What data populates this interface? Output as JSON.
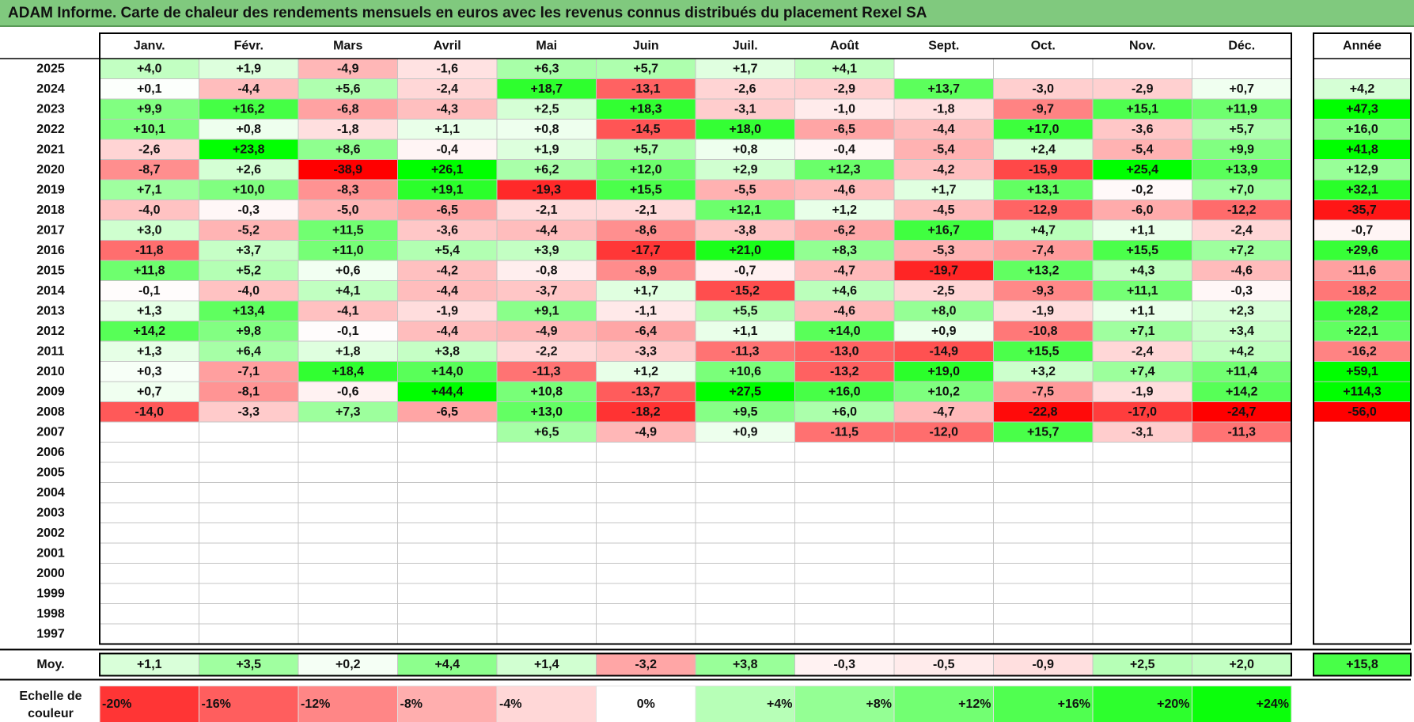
{
  "title": "ADAM Informe. Carte de chaleur des rendements mensuels en euros avec les revenus connus distribués du placement Rexel SA",
  "chart_data": {
    "type": "heatmap",
    "months": [
      "Janv.",
      "Févr.",
      "Mars",
      "Avril",
      "Mai",
      "Juin",
      "Juil.",
      "Août",
      "Sept.",
      "Oct.",
      "Nov.",
      "Déc."
    ],
    "annual_header": "Année",
    "average_label": "Moy.",
    "rows": [
      {
        "year": "2025",
        "values": [
          "+4,0",
          "+1,9",
          "-4,9",
          "-1,6",
          "+6,3",
          "+5,7",
          "+1,7",
          "+4,1",
          null,
          null,
          null,
          null
        ],
        "annual": null
      },
      {
        "year": "2024",
        "values": [
          "+0,1",
          "-4,4",
          "+5,6",
          "-2,4",
          "+18,7",
          "-13,1",
          "-2,6",
          "-2,9",
          "+13,7",
          "-3,0",
          "-2,9",
          "+0,7"
        ],
        "annual": "+4,2"
      },
      {
        "year": "2023",
        "values": [
          "+9,9",
          "+16,2",
          "-6,8",
          "-4,3",
          "+2,5",
          "+18,3",
          "-3,1",
          "-1,0",
          "-1,8",
          "-9,7",
          "+15,1",
          "+11,9"
        ],
        "annual": "+47,3"
      },
      {
        "year": "2022",
        "values": [
          "+10,1",
          "+0,8",
          "-1,8",
          "+1,1",
          "+0,8",
          "-14,5",
          "+18,0",
          "-6,5",
          "-4,4",
          "+17,0",
          "-3,6",
          "+5,7"
        ],
        "annual": "+16,0"
      },
      {
        "year": "2021",
        "values": [
          "-2,6",
          "+23,8",
          "+8,6",
          "-0,4",
          "+1,9",
          "+5,7",
          "+0,8",
          "-0,4",
          "-5,4",
          "+2,4",
          "-5,4",
          "+9,9"
        ],
        "annual": "+41,8"
      },
      {
        "year": "2020",
        "values": [
          "-8,7",
          "+2,6",
          "-38,9",
          "+26,1",
          "+6,2",
          "+12,0",
          "+2,9",
          "+12,3",
          "-4,2",
          "-15,9",
          "+25,4",
          "+13,9"
        ],
        "annual": "+12,9"
      },
      {
        "year": "2019",
        "values": [
          "+7,1",
          "+10,0",
          "-8,3",
          "+19,1",
          "-19,3",
          "+15,5",
          "-5,5",
          "-4,6",
          "+1,7",
          "+13,1",
          "-0,2",
          "+7,0"
        ],
        "annual": "+32,1"
      },
      {
        "year": "2018",
        "values": [
          "-4,0",
          "-0,3",
          "-5,0",
          "-6,5",
          "-2,1",
          "-2,1",
          "+12,1",
          "+1,2",
          "-4,5",
          "-12,9",
          "-6,0",
          "-12,2"
        ],
        "annual": "-35,7"
      },
      {
        "year": "2017",
        "values": [
          "+3,0",
          "-5,2",
          "+11,5",
          "-3,6",
          "-4,4",
          "-8,6",
          "-3,8",
          "-6,2",
          "+16,7",
          "+4,7",
          "+1,1",
          "-2,4"
        ],
        "annual": "-0,7"
      },
      {
        "year": "2016",
        "values": [
          "-11,8",
          "+3,7",
          "+11,0",
          "+5,4",
          "+3,9",
          "-17,7",
          "+21,0",
          "+8,3",
          "-5,3",
          "-7,4",
          "+15,5",
          "+7,2"
        ],
        "annual": "+29,6"
      },
      {
        "year": "2015",
        "values": [
          "+11,8",
          "+5,2",
          "+0,6",
          "-4,2",
          "-0,8",
          "-8,9",
          "-0,7",
          "-4,7",
          "-19,7",
          "+13,2",
          "+4,3",
          "-4,6"
        ],
        "annual": "-11,6"
      },
      {
        "year": "2014",
        "values": [
          "-0,1",
          "-4,0",
          "+4,1",
          "-4,4",
          "-3,7",
          "+1,7",
          "-15,2",
          "+4,6",
          "-2,5",
          "-9,3",
          "+11,1",
          "-0,3"
        ],
        "annual": "-18,2"
      },
      {
        "year": "2013",
        "values": [
          "+1,3",
          "+13,4",
          "-4,1",
          "-1,9",
          "+9,1",
          "-1,1",
          "+5,5",
          "-4,6",
          "+8,0",
          "-1,9",
          "+1,1",
          "+2,3"
        ],
        "annual": "+28,2"
      },
      {
        "year": "2012",
        "values": [
          "+14,2",
          "+9,8",
          "-0,1",
          "-4,4",
          "-4,9",
          "-6,4",
          "+1,1",
          "+14,0",
          "+0,9",
          "-10,8",
          "+7,1",
          "+3,4"
        ],
        "annual": "+22,1"
      },
      {
        "year": "2011",
        "values": [
          "+1,3",
          "+6,4",
          "+1,8",
          "+3,8",
          "-2,2",
          "-3,3",
          "-11,3",
          "-13,0",
          "-14,9",
          "+15,5",
          "-2,4",
          "+4,2"
        ],
        "annual": "-16,2"
      },
      {
        "year": "2010",
        "values": [
          "+0,3",
          "-7,1",
          "+18,4",
          "+14,0",
          "-11,3",
          "+1,2",
          "+10,6",
          "-13,2",
          "+19,0",
          "+3,2",
          "+7,4",
          "+11,4"
        ],
        "annual": "+59,1"
      },
      {
        "year": "2009",
        "values": [
          "+0,7",
          "-8,1",
          "-0,6",
          "+44,4",
          "+10,8",
          "-13,7",
          "+27,5",
          "+16,0",
          "+10,2",
          "-7,5",
          "-1,9",
          "+14,2"
        ],
        "annual": "+114,3"
      },
      {
        "year": "2008",
        "values": [
          "-14,0",
          "-3,3",
          "+7,3",
          "-6,5",
          "+13,0",
          "-18,2",
          "+9,5",
          "+6,0",
          "-4,7",
          "-22,8",
          "-17,0",
          "-24,7"
        ],
        "annual": "-56,0"
      },
      {
        "year": "2007",
        "values": [
          null,
          null,
          null,
          null,
          "+6,5",
          "-4,9",
          "+0,9",
          "-11,5",
          "-12,0",
          "+15,7",
          "-3,1",
          "-11,3"
        ],
        "annual": null
      },
      {
        "year": "2006",
        "values": [
          null,
          null,
          null,
          null,
          null,
          null,
          null,
          null,
          null,
          null,
          null,
          null
        ],
        "annual": null
      },
      {
        "year": "2005",
        "values": [
          null,
          null,
          null,
          null,
          null,
          null,
          null,
          null,
          null,
          null,
          null,
          null
        ],
        "annual": null
      },
      {
        "year": "2004",
        "values": [
          null,
          null,
          null,
          null,
          null,
          null,
          null,
          null,
          null,
          null,
          null,
          null
        ],
        "annual": null
      },
      {
        "year": "2003",
        "values": [
          null,
          null,
          null,
          null,
          null,
          null,
          null,
          null,
          null,
          null,
          null,
          null
        ],
        "annual": null
      },
      {
        "year": "2002",
        "values": [
          null,
          null,
          null,
          null,
          null,
          null,
          null,
          null,
          null,
          null,
          null,
          null
        ],
        "annual": null
      },
      {
        "year": "2001",
        "values": [
          null,
          null,
          null,
          null,
          null,
          null,
          null,
          null,
          null,
          null,
          null,
          null
        ],
        "annual": null
      },
      {
        "year": "2000",
        "values": [
          null,
          null,
          null,
          null,
          null,
          null,
          null,
          null,
          null,
          null,
          null,
          null
        ],
        "annual": null
      },
      {
        "year": "1999",
        "values": [
          null,
          null,
          null,
          null,
          null,
          null,
          null,
          null,
          null,
          null,
          null,
          null
        ],
        "annual": null
      },
      {
        "year": "1998",
        "values": [
          null,
          null,
          null,
          null,
          null,
          null,
          null,
          null,
          null,
          null,
          null,
          null
        ],
        "annual": null
      },
      {
        "year": "1997",
        "values": [
          null,
          null,
          null,
          null,
          null,
          null,
          null,
          null,
          null,
          null,
          null,
          null
        ],
        "annual": null
      }
    ],
    "averages": [
      "+1,1",
      "+3,5",
      "+0,2",
      "+4,4",
      "+1,4",
      "-3,2",
      "+3,8",
      "-0,3",
      "-0,5",
      "-0,9",
      "+2,5",
      "+2,0"
    ],
    "average_annual": "+15,8",
    "scale_label_line1": "Echelle de",
    "scale_label_line2": "couleur",
    "scale": [
      {
        "label": "-20%",
        "value": -20
      },
      {
        "label": "-16%",
        "value": -16
      },
      {
        "label": "-12%",
        "value": -12
      },
      {
        "label": "-8%",
        "value": -8
      },
      {
        "label": "-4%",
        "value": -4
      },
      {
        "label": "0%",
        "value": 0
      },
      {
        "label": "+4%",
        "value": 4
      },
      {
        "label": "+8%",
        "value": 8
      },
      {
        "label": "+12%",
        "value": 12
      },
      {
        "label": "+16%",
        "value": 16
      },
      {
        "label": "+20%",
        "value": 20
      },
      {
        "label": "+24%",
        "value": 24
      }
    ],
    "colors": {
      "title_background": "#80c97e",
      "negative_max": "#ff0000",
      "positive_max": "#00ff00",
      "neutral": "#ffffff",
      "grid": "#bfbfbf",
      "frame": "#000000"
    }
  }
}
